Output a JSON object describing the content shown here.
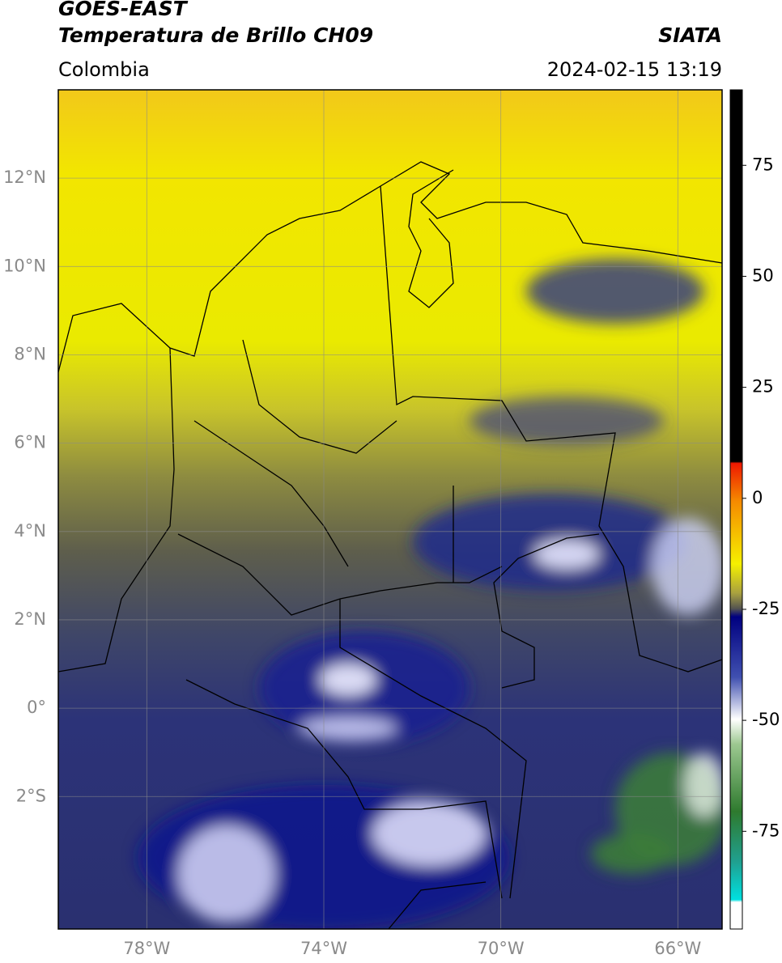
{
  "header": {
    "title": "GOES-EAST",
    "subtitle": "Temperatura de Brillo CH09",
    "source": "SIATA",
    "region": "Colombia",
    "timestamp": "2024-02-15 13:19"
  },
  "map": {
    "xlim": [
      -80,
      -65
    ],
    "ylim": [
      -5,
      14
    ],
    "xticks": [
      {
        "value": -78,
        "label": "78°W"
      },
      {
        "value": -74,
        "label": "74°W"
      },
      {
        "value": -70,
        "label": "70°W"
      },
      {
        "value": -66,
        "label": "66°W"
      }
    ],
    "yticks": [
      {
        "value": 12,
        "label": "12°N"
      },
      {
        "value": 10,
        "label": "10°N"
      },
      {
        "value": 8,
        "label": "8°N"
      },
      {
        "value": 6,
        "label": "6°N"
      },
      {
        "value": 4,
        "label": "4°N"
      },
      {
        "value": 2,
        "label": "2°N"
      },
      {
        "value": 0,
        "label": "0°"
      },
      {
        "value": -2,
        "label": "2°S"
      }
    ],
    "grid": true
  },
  "colorbar": {
    "ylim": [
      -97,
      92
    ],
    "yticks": [
      75,
      50,
      25,
      0,
      -25,
      -50,
      -75
    ]
  }
}
